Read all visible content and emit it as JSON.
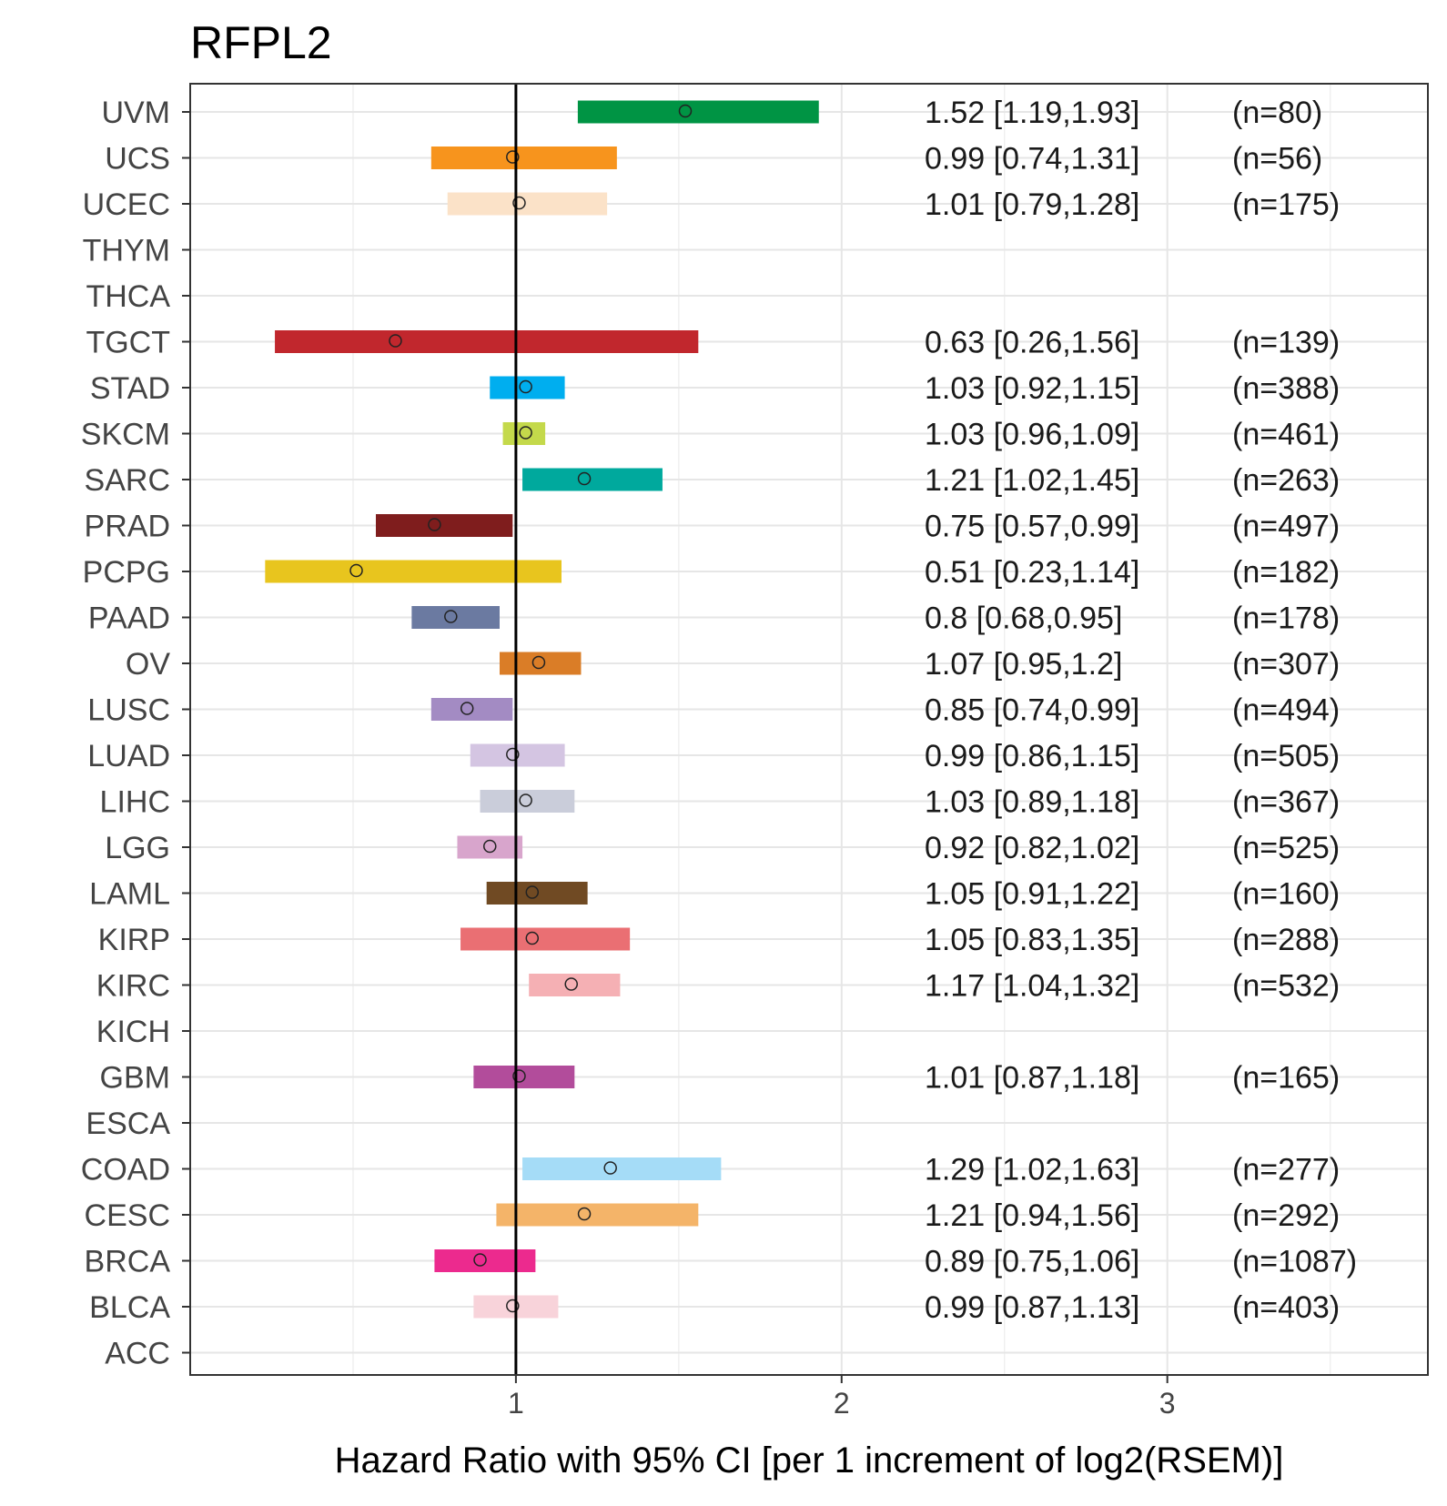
{
  "chart_data": {
    "type": "forest",
    "title": "RFPL2",
    "xlabel": "Hazard Ratio with 95% CI [per 1 increment of log2(RSEM)]",
    "xlim": [
      0.0,
      3.8
    ],
    "xticks": [
      1,
      2,
      3
    ],
    "xtick_labels": [
      "1",
      "2",
      "3"
    ],
    "reference_line": 1,
    "grid": true,
    "rows": [
      {
        "label": "UVM",
        "hr": 1.52,
        "lo": 1.19,
        "hi": 1.93,
        "text": "1.52 [1.19,1.93]",
        "n": "(n=80)",
        "color": "#009444"
      },
      {
        "label": "UCS",
        "hr": 0.99,
        "lo": 0.74,
        "hi": 1.31,
        "text": "0.99 [0.74,1.31]",
        "n": "(n=56)",
        "color": "#F7941D"
      },
      {
        "label": "UCEC",
        "hr": 1.01,
        "lo": 0.79,
        "hi": 1.28,
        "text": "1.01 [0.79,1.28]",
        "n": "(n=175)",
        "color": "#FBE2C8"
      },
      {
        "label": "THYM",
        "hr": null,
        "lo": null,
        "hi": null,
        "text": "",
        "n": "",
        "color": ""
      },
      {
        "label": "THCA",
        "hr": null,
        "lo": null,
        "hi": null,
        "text": "",
        "n": "",
        "color": ""
      },
      {
        "label": "TGCT",
        "hr": 0.63,
        "lo": 0.26,
        "hi": 1.56,
        "text": "0.63 [0.26,1.56]",
        "n": "(n=139)",
        "color": "#C1272D"
      },
      {
        "label": "STAD",
        "hr": 1.03,
        "lo": 0.92,
        "hi": 1.15,
        "text": "1.03 [0.92,1.15]",
        "n": "(n=388)",
        "color": "#00AEEF"
      },
      {
        "label": "SKCM",
        "hr": 1.03,
        "lo": 0.96,
        "hi": 1.09,
        "text": "1.03 [0.96,1.09]",
        "n": "(n=461)",
        "color": "#C4D94B"
      },
      {
        "label": "SARC",
        "hr": 1.21,
        "lo": 1.02,
        "hi": 1.45,
        "text": "1.21 [1.02,1.45]",
        "n": "(n=263)",
        "color": "#00A99D"
      },
      {
        "label": "PRAD",
        "hr": 0.75,
        "lo": 0.57,
        "hi": 0.99,
        "text": "0.75 [0.57,0.99]",
        "n": "(n=497)",
        "color": "#7F1D1D"
      },
      {
        "label": "PCPG",
        "hr": 0.51,
        "lo": 0.23,
        "hi": 1.14,
        "text": "0.51 [0.23,1.14]",
        "n": "(n=182)",
        "color": "#E8C51E"
      },
      {
        "label": "PAAD",
        "hr": 0.8,
        "lo": 0.68,
        "hi": 0.95,
        "text": "0.8 [0.68,0.95]",
        "n": "(n=178)",
        "color": "#6B7AA1"
      },
      {
        "label": "OV",
        "hr": 1.07,
        "lo": 0.95,
        "hi": 1.2,
        "text": "1.07 [0.95,1.2]",
        "n": "(n=307)",
        "color": "#DA7D27"
      },
      {
        "label": "LUSC",
        "hr": 0.85,
        "lo": 0.74,
        "hi": 0.99,
        "text": "0.85 [0.74,0.99]",
        "n": "(n=494)",
        "color": "#A38BC3"
      },
      {
        "label": "LUAD",
        "hr": 0.99,
        "lo": 0.86,
        "hi": 1.15,
        "text": "0.99 [0.86,1.15]",
        "n": "(n=505)",
        "color": "#D4C5E2"
      },
      {
        "label": "LIHC",
        "hr": 1.03,
        "lo": 0.89,
        "hi": 1.18,
        "text": "1.03 [0.89,1.18]",
        "n": "(n=367)",
        "color": "#CACDDA"
      },
      {
        "label": "LGG",
        "hr": 0.92,
        "lo": 0.82,
        "hi": 1.02,
        "text": "0.92 [0.82,1.02]",
        "n": "(n=525)",
        "color": "#D8A5CC"
      },
      {
        "label": "LAML",
        "hr": 1.05,
        "lo": 0.91,
        "hi": 1.22,
        "text": "1.05 [0.91,1.22]",
        "n": "(n=160)",
        "color": "#704A23"
      },
      {
        "label": "KIRP",
        "hr": 1.05,
        "lo": 0.83,
        "hi": 1.35,
        "text": "1.05 [0.83,1.35]",
        "n": "(n=288)",
        "color": "#EA6F73"
      },
      {
        "label": "KIRC",
        "hr": 1.17,
        "lo": 1.04,
        "hi": 1.32,
        "text": "1.17 [1.04,1.32]",
        "n": "(n=532)",
        "color": "#F5B0B4"
      },
      {
        "label": "KICH",
        "hr": null,
        "lo": null,
        "hi": null,
        "text": "",
        "n": "",
        "color": ""
      },
      {
        "label": "GBM",
        "hr": 1.01,
        "lo": 0.87,
        "hi": 1.18,
        "text": "1.01 [0.87,1.18]",
        "n": "(n=165)",
        "color": "#B24C9B"
      },
      {
        "label": "ESCA",
        "hr": null,
        "lo": null,
        "hi": null,
        "text": "",
        "n": "",
        "color": ""
      },
      {
        "label": "COAD",
        "hr": 1.29,
        "lo": 1.02,
        "hi": 1.63,
        "text": "1.29 [1.02,1.63]",
        "n": "(n=277)",
        "color": "#A5DCF7"
      },
      {
        "label": "CESC",
        "hr": 1.21,
        "lo": 0.94,
        "hi": 1.56,
        "text": "1.21 [0.94,1.56]",
        "n": "(n=292)",
        "color": "#F4B469"
      },
      {
        "label": "BRCA",
        "hr": 0.89,
        "lo": 0.75,
        "hi": 1.06,
        "text": "0.89 [0.75,1.06]",
        "n": "(n=1087)",
        "color": "#EC2A8E"
      },
      {
        "label": "BLCA",
        "hr": 0.99,
        "lo": 0.87,
        "hi": 1.13,
        "text": "0.99 [0.87,1.13]",
        "n": "(n=403)",
        "color": "#F8D3DA"
      },
      {
        "label": "ACC",
        "hr": null,
        "lo": null,
        "hi": null,
        "text": "",
        "n": "",
        "color": ""
      }
    ]
  }
}
